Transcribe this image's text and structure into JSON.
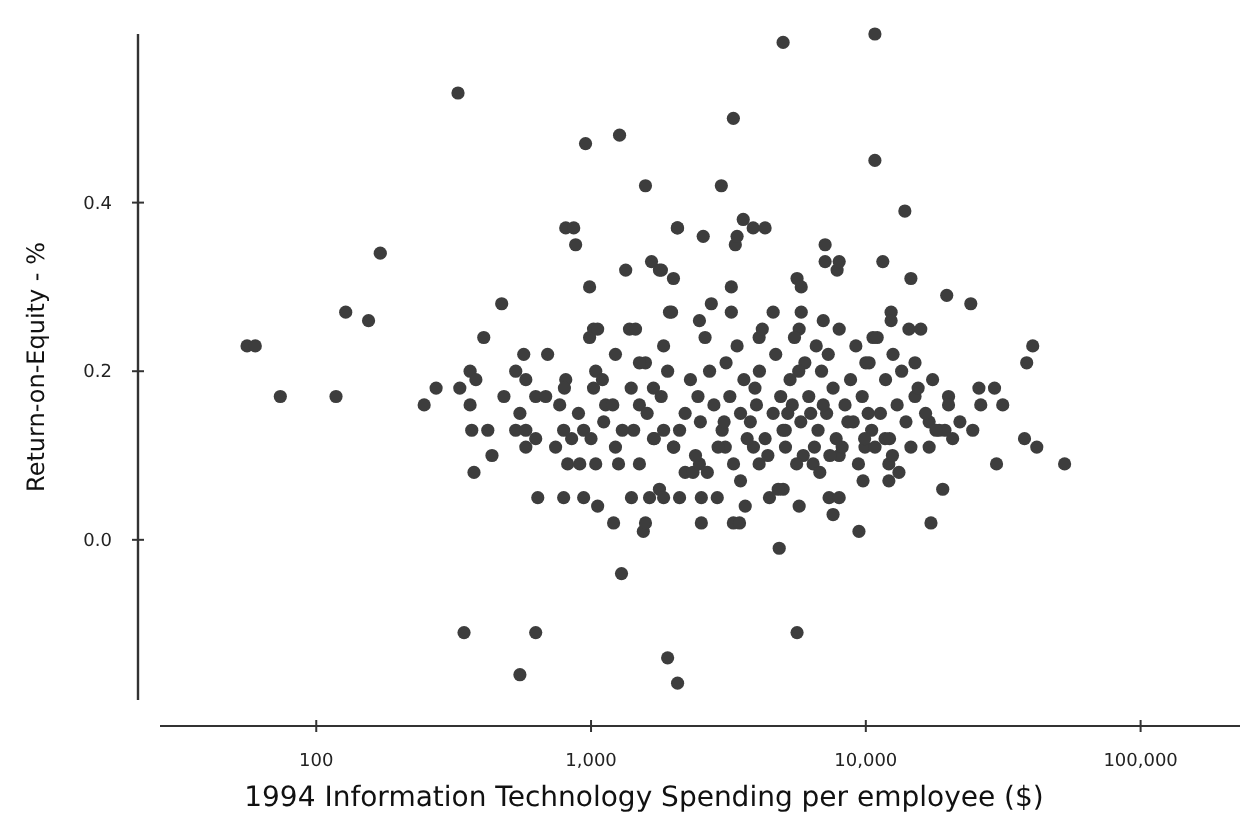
{
  "chart_data": {
    "type": "scatter",
    "xlabel": "1994 Information Technology Spending per employee ($)",
    "ylabel": "Return-on-Equity - %",
    "log": "x",
    "marker": "circle",
    "color": "#3d3d3d",
    "xlim": [
      27,
      230000
    ],
    "ylim": [
      -0.19,
      0.6
    ],
    "xticks": [
      {
        "value": 100,
        "label": "100"
      },
      {
        "value": 1000,
        "label": "1,000"
      },
      {
        "value": 10000,
        "label": "10,000"
      },
      {
        "value": 100000,
        "label": "100,000"
      }
    ],
    "yticks": [
      {
        "value": 0,
        "label": "0.0"
      },
      0.2,
      0.4
    ],
    "x": [
      56,
      60,
      74,
      118,
      128,
      155,
      171,
      247,
      273,
      328,
      333,
      345,
      363,
      363,
      368,
      375,
      381,
      407,
      421,
      436,
      473,
      482,
      532,
      532,
      551,
      551,
      569,
      579,
      579,
      579,
      629,
      629,
      629,
      640,
      684,
      695,
      743,
      769,
      795,
      795,
      809,
      809,
      822,
      865,
      879,
      910,
      940,
      940,
      955,
      988,
      988,
      1021,
      1021,
      1040,
      1040,
      1057,
      1057,
      1112,
      1130,
      1208,
      1227,
      1227,
      1259,
      1270,
      1291,
      1337,
      1380,
      1403,
      1429,
      1452,
      1500,
      1500,
      1550,
      1578,
      1578,
      1578,
      1633,
      1660,
      1687,
      1687,
      1774,
      1774,
      1803,
      1837,
      1837,
      1837,
      1900,
      1930,
      1963,
      1995,
      1995,
      2060,
      2065,
      2065,
      2100,
      2200,
      2350,
      2480,
      2480,
      2520,
      2520,
      2560,
      2740,
      2880,
      2980,
      3080,
      3240,
      3240,
      3296,
      3296,
      3350,
      3400,
      3470,
      3580,
      3640,
      3890,
      4090,
      4090,
      4300,
      4460,
      4600,
      4840,
      5000,
      5000,
      5090,
      5620,
      5620,
      5720,
      5720,
      5820,
      5820,
      5920,
      6430,
      7000,
      7110,
      7110,
      7350,
      7600,
      7860,
      8000,
      8000,
      8000,
      9440,
      9770,
      9930,
      10280,
      10620,
      10790,
      10790,
      11530,
      11750,
      12130,
      12130,
      12360,
      12360,
      12560,
      13200,
      13870,
      14350,
      14590,
      14590,
      15100,
      15100,
      15850,
      17000,
      17260,
      17500,
      18500,
      19050,
      19400,
      19700,
      20000,
      20700,
      24100,
      24500,
      25800,
      26200,
      29400,
      29900,
      31500,
      37800,
      38500,
      40500,
      41900,
      52900,
      2200,
      2500,
      2800,
      3000,
      3200,
      3500,
      3800,
      4000,
      4300,
      4600,
      5000,
      5400,
      5800,
      6200,
      6700,
      7200,
      7800,
      8400,
      9000,
      9700,
      10500,
      11300,
      12200,
      13000,
      14000,
      2300,
      2700,
      3100,
      3600,
      4100,
      4700,
      5300,
      6000,
      6900,
      7600,
      8800,
      10000,
      11800,
      13500,
      15500,
      2000,
      2400,
      2900,
      3300,
      3900,
      4400,
      5100,
      5600,
      6500,
      7400,
      8200,
      9400,
      10800,
      12500,
      1800,
      1600,
      1400,
      1200,
      1100,
      1300,
      1700,
      1900,
      16500,
      18000,
      20000,
      22000,
      17000,
      2600,
      3400,
      4200,
      5500,
      6600,
      8000,
      9200,
      11000,
      2100,
      3700,
      4900,
      6300,
      8600,
      10200,
      2450,
      3050,
      3950,
      5200,
      7000,
      9900,
      4800,
      6800,
      3500,
      2650,
      5700,
      7300,
      1500,
      1000,
      900,
      800,
      850
    ],
    "values": [
      0.23,
      0.23,
      0.17,
      0.17,
      0.27,
      0.26,
      0.34,
      0.16,
      0.18,
      0.53,
      0.18,
      -0.11,
      0.16,
      0.2,
      0.13,
      0.08,
      0.19,
      0.24,
      0.13,
      0.1,
      0.28,
      0.17,
      0.2,
      0.13,
      -0.16,
      0.15,
      0.22,
      0.19,
      0.13,
      0.11,
      -0.11,
      0.17,
      0.12,
      0.05,
      0.17,
      0.22,
      0.11,
      0.16,
      0.05,
      0.13,
      0.37,
      0.19,
      0.09,
      0.37,
      0.35,
      0.09,
      0.05,
      0.13,
      0.47,
      0.3,
      0.24,
      0.25,
      0.18,
      0.09,
      0.2,
      0.25,
      0.04,
      0.14,
      0.16,
      0.02,
      0.22,
      0.11,
      0.09,
      0.48,
      -0.04,
      0.32,
      0.25,
      0.05,
      0.13,
      0.25,
      0.09,
      0.16,
      0.01,
      0.42,
      0.02,
      0.21,
      0.05,
      0.33,
      0.18,
      0.12,
      0.32,
      0.06,
      0.32,
      0.23,
      0.05,
      0.13,
      -0.14,
      0.27,
      0.27,
      0.31,
      0.11,
      0.37,
      0.37,
      -0.17,
      0.05,
      0.08,
      0.08,
      0.26,
      0.09,
      0.02,
      0.05,
      0.36,
      0.28,
      0.05,
      0.42,
      0.11,
      0.3,
      0.27,
      0.5,
      0.02,
      0.35,
      0.36,
      0.02,
      0.38,
      0.04,
      0.37,
      0.24,
      0.09,
      0.37,
      0.05,
      0.27,
      -0.01,
      0.59,
      0.06,
      0.13,
      0.31,
      -0.11,
      0.25,
      0.04,
      0.3,
      0.27,
      0.1,
      0.09,
      0.26,
      0.35,
      0.33,
      0.05,
      0.03,
      0.32,
      0.33,
      0.05,
      0.1,
      0.01,
      0.07,
      0.11,
      0.21,
      0.24,
      0.6,
      0.45,
      0.33,
      0.12,
      0.07,
      0.09,
      0.27,
      0.26,
      0.22,
      0.08,
      0.39,
      0.25,
      0.31,
      0.11,
      0.17,
      0.21,
      0.25,
      0.14,
      0.02,
      0.19,
      0.13,
      0.06,
      0.13,
      0.29,
      0.17,
      0.12,
      0.28,
      0.13,
      0.18,
      0.16,
      0.18,
      0.09,
      0.16,
      0.12,
      0.21,
      0.23,
      0.11,
      0.09,
      0.15,
      0.14,
      0.16,
      0.13,
      0.17,
      0.15,
      0.14,
      0.16,
      0.12,
      0.15,
      0.13,
      0.16,
      0.14,
      0.17,
      0.13,
      0.15,
      0.12,
      0.16,
      0.14,
      0.17,
      0.13,
      0.15,
      0.12,
      0.16,
      0.14,
      0.19,
      0.2,
      0.21,
      0.19,
      0.2,
      0.22,
      0.19,
      0.21,
      0.2,
      0.18,
      0.19,
      0.21,
      0.19,
      0.2,
      0.18,
      0.11,
      0.1,
      0.11,
      0.09,
      0.11,
      0.1,
      0.11,
      0.09,
      0.11,
      0.1,
      0.11,
      0.09,
      0.11,
      0.1,
      0.17,
      0.15,
      0.18,
      0.16,
      0.19,
      0.13,
      0.12,
      0.2,
      0.15,
      0.13,
      0.16,
      0.14,
      0.11,
      0.24,
      0.23,
      0.25,
      0.24,
      0.23,
      0.25,
      0.23,
      0.24,
      0.13,
      0.12,
      0.17,
      0.15,
      0.14,
      0.15,
      0.17,
      0.14,
      0.18,
      0.15,
      0.16,
      0.12,
      0.06,
      0.08,
      0.07,
      0.08,
      0.2,
      0.22,
      0.21,
      0.12,
      0.15,
      0.18,
      0.12
    ]
  }
}
